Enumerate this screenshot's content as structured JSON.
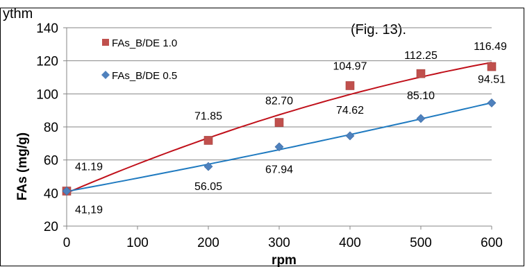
{
  "caption": {
    "left": "ythm",
    "right": "(Fig. 13)."
  },
  "chart_data": {
    "type": "scatter",
    "title": "",
    "xlabel": "rpm",
    "ylabel": "FAs (mg/g)",
    "xlim": [
      0,
      600
    ],
    "ylim": [
      20,
      140
    ],
    "x_ticks": [
      0,
      100,
      200,
      300,
      400,
      500,
      600
    ],
    "y_ticks": [
      20,
      40,
      60,
      80,
      100,
      120,
      140
    ],
    "grid": "horizontal",
    "legend_placement": "top-left",
    "series": [
      {
        "name": "FAs_B/DE 1.0",
        "marker": "square",
        "color": "#c0504d",
        "trendline_color": "#c0101a",
        "x": [
          0,
          200,
          300,
          400,
          500,
          600
        ],
        "y": [
          41.19,
          71.85,
          82.7,
          104.97,
          112.25,
          116.49
        ],
        "labels": [
          "41.19",
          "71.85",
          "82.70",
          "104.97",
          "112.25",
          "116.49"
        ]
      },
      {
        "name": "FAs_B/DE 0.5",
        "marker": "diamond",
        "color": "#4f81bd",
        "trendline_color": "#1f7ac0",
        "x": [
          0,
          200,
          300,
          400,
          500,
          600
        ],
        "y": [
          41.19,
          56.05,
          67.94,
          74.62,
          85.1,
          94.51
        ],
        "labels": [
          "41,19",
          "56.05",
          "67.94",
          "74.62",
          "85.10",
          "94.51"
        ]
      }
    ]
  }
}
